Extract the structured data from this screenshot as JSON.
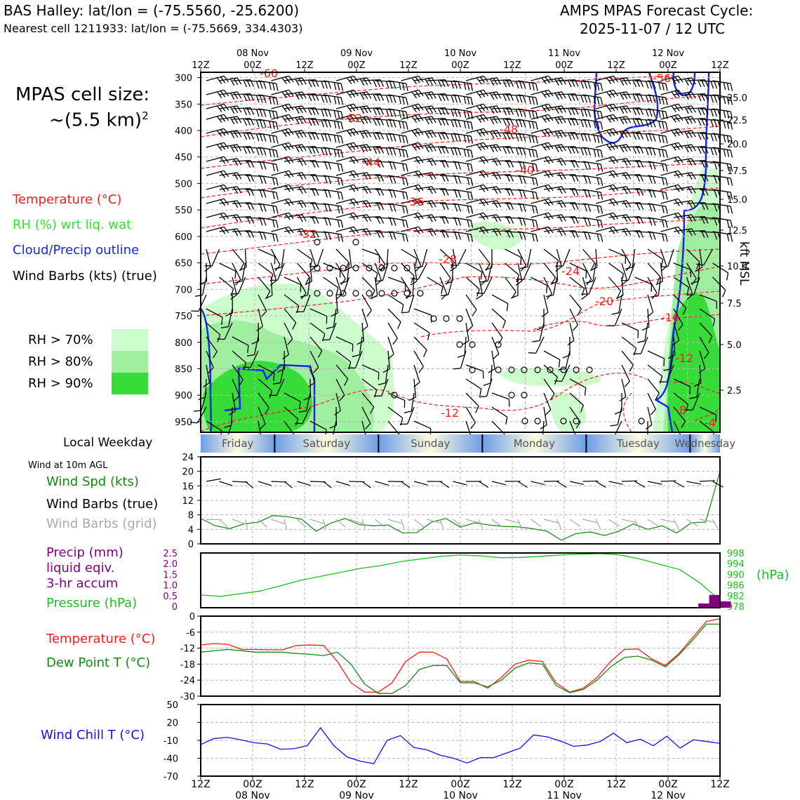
{
  "header": {
    "station_line": "BAS Halley: lat/lon = (-75.5560, -25.6200)",
    "cell_line": "Nearest cell 1211933: lat/lon = (-75.5669, 334.4303)",
    "cycle_title": "AMPS MPAS Forecast Cycle:",
    "cycle_time": "2025-11-07 / 12 UTC"
  },
  "cell_size": {
    "label": "MPAS cell size:",
    "value": "~(5.5 km)",
    "exponent": "2"
  },
  "legend_upper": {
    "temperature": "Temperature (°C)",
    "rh": "RH (%) wrt liq. wat",
    "cloud": "Cloud/Precip outline",
    "wind": "Wind Barbs (kts) (true)"
  },
  "rh_legend": [
    "RH > 70%",
    "RH > 80%",
    "RH > 90%"
  ],
  "colors": {
    "rh70": "#ccfccc",
    "rh80": "#a0eea0",
    "rh90": "#38dc38",
    "temp": "#ff1a1a",
    "cloud": "#1428e6",
    "pressure": "#22bb22",
    "precip": "#800080",
    "dewpoint": "#118811",
    "windchill": "#1010ee",
    "grid_barb": "#aaaaaa",
    "wind_speed": "#228b22"
  },
  "time_axis": {
    "tick_labels": [
      "12Z",
      "00Z",
      "12Z",
      "00Z",
      "12Z",
      "00Z",
      "12Z",
      "00Z",
      "12Z",
      "00Z",
      "12Z"
    ],
    "dates": [
      "08 Nov",
      "09 Nov",
      "10 Nov",
      "11 Nov",
      "12 Nov"
    ]
  },
  "weekday": {
    "title": "Local Weekday",
    "days": [
      "Friday",
      "Saturday",
      "Sunday",
      "Monday",
      "Tuesday",
      "Wednesday"
    ]
  },
  "kft_label": "kft MSL",
  "pressure_unit_label": "(hPa)",
  "left_labels": {
    "wind10": "Wind at 10m AGL",
    "wind_spd": "Wind Spd (kts)",
    "wind_true": "Wind Barbs (true)",
    "wind_grid": "Wind Barbs (grid)",
    "precip1": "Precip (mm)",
    "precip2": "liquid eqiv.",
    "precip3": "3-hr accum",
    "pressure": "Pressure (hPa)",
    "temp": "Temperature (°C)",
    "dewpt": "Dew Point T (°C)",
    "windchill": "Wind Chill T (°C)"
  },
  "chart_data": [
    {
      "type": "heatmap",
      "description_panel": "time-height cross section",
      "y_axis_pressure_hpa": [
        300,
        350,
        400,
        450,
        500,
        550,
        600,
        650,
        700,
        750,
        800,
        850,
        900,
        950
      ],
      "y_axis_right_kft": [
        "25.0",
        "22.5",
        "20.0",
        "17.5",
        "15.0",
        "12.5",
        "10.0",
        "7.5",
        "5.0",
        "2.5"
      ],
      "temperature_contour_labels": [
        "-60",
        "-56",
        "-52",
        "-48",
        "-44",
        "-40",
        "-36",
        "-32",
        "-28",
        "-24",
        "-20",
        "-16",
        "-12",
        "-12",
        "-8",
        "-4"
      ]
    },
    {
      "type": "line",
      "panel": "wind_10m",
      "yticks": [
        0,
        4,
        8,
        12,
        16,
        20,
        24
      ],
      "ylim": [
        0,
        24
      ],
      "x_hours": [
        0,
        6,
        12,
        18,
        24,
        30,
        36,
        42,
        48,
        54,
        60,
        66,
        72,
        78,
        84,
        90,
        96,
        102,
        108,
        114,
        120,
        126,
        132,
        138,
        144
      ],
      "wind_speed_kts": [
        7,
        5,
        4.2,
        5.5,
        6,
        7.8,
        7.5,
        6.8,
        3.5,
        5.7,
        7,
        5.3,
        5,
        5.2,
        3,
        3.1,
        6,
        7,
        4.6,
        5.8,
        5.2,
        4.8,
        4.7,
        4.2,
        3.5,
        1,
        2.8,
        3.3,
        2.3,
        3.5,
        5.5,
        4,
        5,
        3,
        5.8,
        6,
        20
      ]
    },
    {
      "type": "line",
      "panel": "precip_pressure",
      "precip_yticks": [
        "0",
        "0.5",
        "1.0",
        "1.5",
        "2.0",
        "2.5"
      ],
      "pressure_yticks": [
        "978",
        "982",
        "986",
        "990",
        "994",
        "998"
      ],
      "pressure_hpa": [
        982.5,
        982,
        983,
        984,
        986,
        988,
        989.5,
        991,
        992.5,
        993.5,
        995,
        996,
        997,
        997.5,
        997.2,
        996.5,
        996.6,
        997,
        997.5,
        997.8,
        998,
        997.5,
        996,
        994,
        992,
        987,
        980.5
      ],
      "precip_mm": [
        {
          "x": 139.5,
          "w": 3,
          "v": 0.2
        },
        {
          "x": 142.5,
          "w": 3,
          "v": 0.6
        },
        {
          "x": 145.5,
          "w": 3,
          "v": 0.3
        }
      ]
    },
    {
      "type": "line",
      "panel": "temperature",
      "yticks": [
        "0",
        "-6",
        "-12",
        "-18",
        "-24",
        "-30"
      ],
      "ylim": [
        -30,
        0
      ],
      "series": [
        {
          "name": "Temperature (°C)",
          "values": [
            -10.8,
            -10.3,
            -10.6,
            -12.5,
            -12.5,
            -12.6,
            -12.6,
            -11,
            -10.8,
            -11,
            -17,
            -25,
            -28.5,
            -28.5,
            -25,
            -17,
            -13.5,
            -13.5,
            -16,
            -24.5,
            -24.5,
            -27,
            -23,
            -18,
            -16.5,
            -17,
            -25,
            -28.5,
            -27,
            -23,
            -17,
            -12.5,
            -12.3,
            -16,
            -18.5,
            -14,
            -8,
            -2,
            -1
          ]
        },
        {
          "name": "Dew Point T (°C)",
          "values": [
            -13.5,
            -13,
            -12.5,
            -13,
            -13.5,
            -13.5,
            -13.5,
            -14,
            -14.3,
            -14.8,
            -13.5,
            -18,
            -25.5,
            -29,
            -29,
            -26,
            -20,
            -18.5,
            -18.5,
            -25,
            -25,
            -26.5,
            -24,
            -19.5,
            -17.5,
            -18,
            -26,
            -28.7,
            -27.5,
            -24,
            -19,
            -15.5,
            -15,
            -16.5,
            -19,
            -14.5,
            -9,
            -3,
            -3
          ]
        }
      ]
    },
    {
      "type": "line",
      "panel": "wind_chill",
      "yticks": [
        "50",
        "20",
        "-10",
        "-40",
        "-70"
      ],
      "ylim": [
        -70,
        50
      ],
      "series": [
        {
          "name": "Wind Chill T (°C)",
          "values": [
            -17,
            -7,
            -5,
            -9,
            -14,
            -16,
            -25,
            -24,
            -19,
            11,
            -19,
            -38,
            -45,
            -49,
            -10,
            -2,
            -22,
            -26,
            -35,
            -40,
            -48,
            -39,
            -39,
            -31,
            -23,
            -1,
            -4,
            -11,
            -20,
            -18,
            -12,
            2,
            -14,
            -8,
            -19,
            -3,
            -23,
            -9,
            -12,
            -15
          ]
        }
      ]
    }
  ]
}
